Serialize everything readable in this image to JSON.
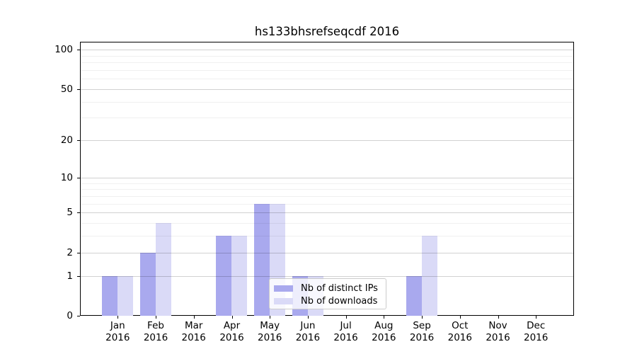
{
  "chart_data": {
    "type": "bar",
    "title": "hs133bhsrefseqcdf 2016",
    "categories": [
      "Jan",
      "Feb",
      "Mar",
      "Apr",
      "May",
      "Jun",
      "Jul",
      "Aug",
      "Sep",
      "Oct",
      "Nov",
      "Dec"
    ],
    "year_label": "2016",
    "series": [
      {
        "name": "Nb of distinct IPs",
        "color": "#a9a9ee",
        "values": [
          1,
          2,
          0,
          3,
          6,
          1,
          0,
          0,
          1,
          0,
          0,
          0
        ]
      },
      {
        "name": "Nb of downloads",
        "color": "#dadaf7",
        "values": [
          1,
          4,
          0,
          3,
          6,
          1,
          0,
          0,
          3,
          0,
          0,
          0
        ]
      }
    ],
    "yticks": [
      0,
      1,
      2,
      5,
      10,
      20,
      50,
      100
    ],
    "yticks_minor": [
      3,
      4,
      6,
      7,
      8,
      9,
      30,
      40,
      60,
      70,
      80,
      90
    ],
    "scale": "log1p",
    "ylim": [
      0,
      115
    ],
    "xlabel": "",
    "ylabel": "",
    "grid": true,
    "legend_position": "lower center, inside plot"
  }
}
